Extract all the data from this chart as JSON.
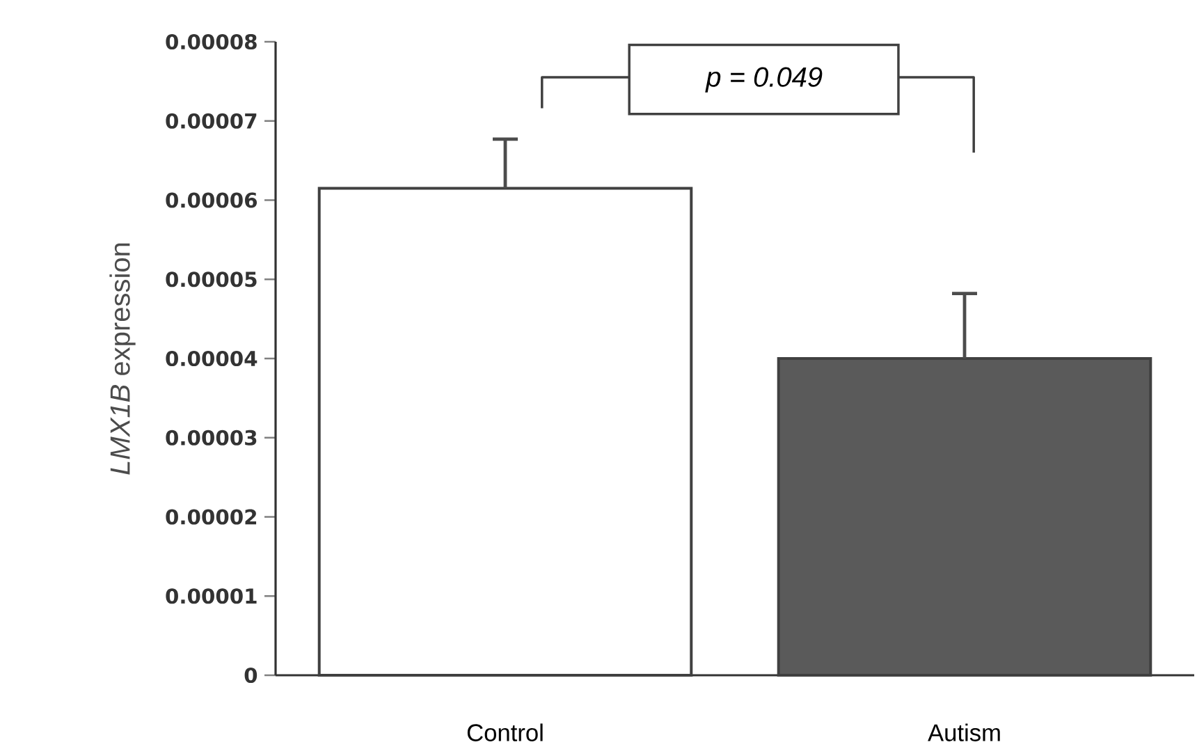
{
  "chart_data": {
    "type": "bar",
    "ylabel": "*LMX1B* expression",
    "categories": [
      "Control",
      "Autism"
    ],
    "values": [
      6.15e-05,
      4e-05
    ],
    "colors": [
      "#ffffff",
      "#5a5a5a"
    ],
    "errors": [
      [
        6.15e-05,
        6.77e-05
      ],
      [
        4e-05,
        4.82e-05
      ]
    ],
    "ylim": [
      0,
      8e-05
    ],
    "yticks": [
      {
        "value": 0,
        "label": "0"
      },
      {
        "value": 1e-05,
        "label": "0.00001"
      },
      {
        "value": 2e-05,
        "label": "0.00002"
      },
      {
        "value": 3e-05,
        "label": "0.00003"
      },
      {
        "value": 4e-05,
        "label": "0.00004"
      },
      {
        "value": 5e-05,
        "label": "0.00005"
      },
      {
        "value": 6e-05,
        "label": "0.00006"
      },
      {
        "value": 7e-05,
        "label": "0.00007"
      },
      {
        "value": 8e-05,
        "label": "0.00008"
      }
    ],
    "annotations": [
      "*p = 0.049*"
    ]
  }
}
